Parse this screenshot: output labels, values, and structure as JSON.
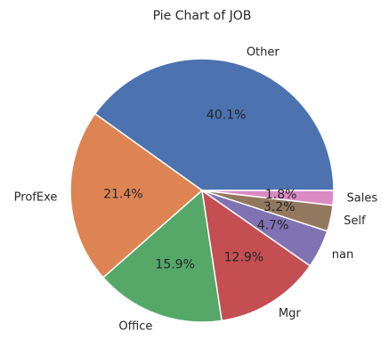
{
  "chart_data": {
    "type": "pie",
    "title": "Pie Chart of JOB",
    "categories": [
      "Other",
      "ProfExe",
      "Office",
      "Mgr",
      "nan",
      "Self",
      "Sales"
    ],
    "values": [
      40.1,
      21.4,
      15.9,
      12.9,
      4.7,
      3.2,
      1.8
    ],
    "percent_labels": [
      "40.1%",
      "21.4%",
      "15.9%",
      "12.9%",
      "4.7%",
      "3.2%",
      "1.8%"
    ],
    "colors": [
      "#4c72b0",
      "#dd8452",
      "#55a868",
      "#c44e52",
      "#8172b3",
      "#937860",
      "#da8bc3"
    ],
    "start_angle_deg": 0,
    "direction": "counterclockwise"
  }
}
